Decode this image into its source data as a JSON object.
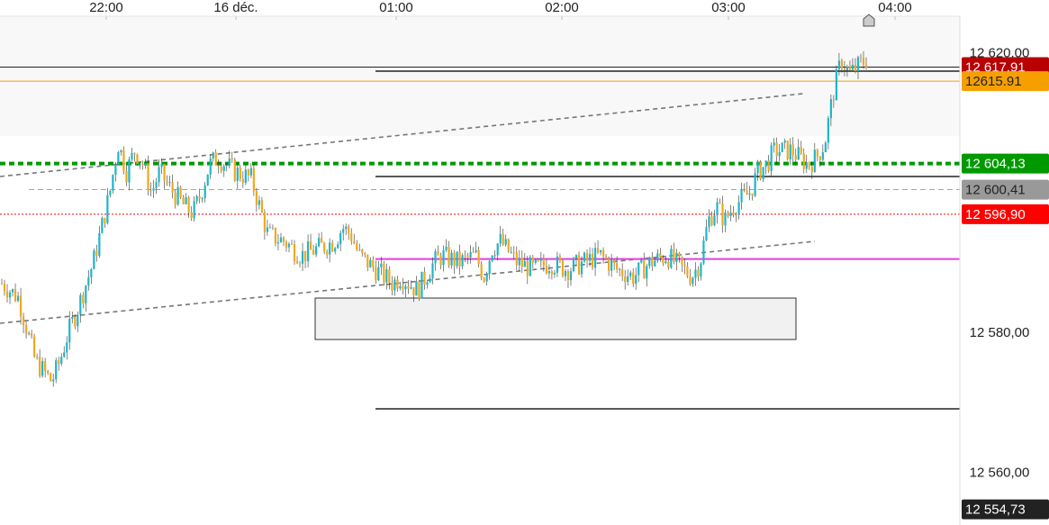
{
  "colors": {
    "up": "#1fb5c9",
    "down": "#f0a81c",
    "current_price": "#b80000",
    "orange_line": "#f5a000",
    "green_line": "#009900",
    "red_line": "#ff0000",
    "magenta_line": "#e040e0",
    "dark_line": "#222222",
    "grey_badge": "#999999",
    "box_fill": "#eeeeee"
  },
  "chart_data": {
    "type": "candlestick",
    "time_axis": {
      "ticks": [
        "22:00",
        "16 déc.",
        "01:00",
        "02:00",
        "03:00",
        "04:00"
      ]
    },
    "price_axis": {
      "ylim": [
        12552.5,
        12627.5
      ],
      "ticks": [
        {
          "value": 12620,
          "label": "12 620,00"
        },
        {
          "value": 12580,
          "label": "12 580,00"
        },
        {
          "value": 12560,
          "label": "12 560,00"
        }
      ]
    },
    "price_path": [
      [
        0,
        12587
      ],
      [
        2,
        12585
      ],
      [
        4,
        12576
      ],
      [
        6,
        12573
      ],
      [
        7,
        12576
      ],
      [
        8,
        12580
      ],
      [
        9,
        12583
      ],
      [
        11,
        12590
      ],
      [
        13,
        12600
      ],
      [
        14,
        12607
      ],
      [
        15,
        12603
      ],
      [
        16,
        12606
      ],
      [
        17,
        12604
      ],
      [
        18,
        12600
      ],
      [
        19,
        12603
      ],
      [
        20,
        12601
      ],
      [
        22,
        12598
      ],
      [
        23,
        12597
      ],
      [
        24,
        12600
      ],
      [
        25,
        12604
      ],
      [
        26,
        12605
      ],
      [
        27,
        12604
      ],
      [
        28,
        12603
      ],
      [
        30,
        12602
      ],
      [
        31,
        12598
      ],
      [
        32,
        12594
      ],
      [
        34,
        12593
      ],
      [
        35,
        12592
      ],
      [
        36,
        12591
      ],
      [
        38,
        12592
      ],
      [
        40,
        12593
      ],
      [
        41,
        12595
      ],
      [
        42,
        12594
      ],
      [
        43,
        12591
      ],
      [
        45,
        12589
      ],
      [
        47,
        12587
      ],
      [
        48,
        12588
      ],
      [
        50,
        12586
      ],
      [
        52,
        12590
      ],
      [
        53,
        12591
      ],
      [
        55,
        12590
      ],
      [
        57,
        12591
      ],
      [
        58,
        12588
      ],
      [
        59,
        12592
      ],
      [
        60,
        12593
      ],
      [
        62,
        12590
      ],
      [
        64,
        12589
      ],
      [
        66,
        12590
      ],
      [
        68,
        12589
      ],
      [
        70,
        12590
      ],
      [
        72,
        12591
      ],
      [
        74,
        12589
      ],
      [
        76,
        12588
      ],
      [
        78,
        12590
      ],
      [
        80,
        12591
      ],
      [
        82,
        12589
      ],
      [
        83,
        12588
      ],
      [
        84,
        12590
      ],
      [
        85,
        12596
      ],
      [
        86,
        12598
      ],
      [
        87,
        12596
      ],
      [
        88,
        12598
      ],
      [
        90,
        12600
      ],
      [
        91,
        12603
      ],
      [
        92,
        12604
      ],
      [
        93,
        12606
      ],
      [
        95,
        12606
      ],
      [
        96,
        12605
      ],
      [
        97,
        12604
      ],
      [
        98,
        12605
      ],
      [
        99,
        12607
      ],
      [
        100,
        12614
      ],
      [
        101,
        12619
      ],
      [
        102,
        12617
      ],
      [
        103,
        12618
      ],
      [
        104,
        12619
      ]
    ],
    "lines": [
      {
        "kind": "horizontal",
        "price": 12617.91,
        "color_key": "current_price",
        "style": "solid"
      },
      {
        "kind": "horizontal",
        "price": 12615.91,
        "color_key": "orange_line",
        "style": "solid"
      },
      {
        "kind": "horizontal",
        "price": 12604.13,
        "color_key": "green_line",
        "style": "dotted-bold"
      },
      {
        "kind": "horizontal",
        "price": 12600.41,
        "color_key": "grey_badge",
        "style": "dashed"
      },
      {
        "kind": "horizontal",
        "price": 12596.9,
        "color_key": "red_line",
        "style": "dotted"
      },
      {
        "kind": "horizontal",
        "price": 12590.5,
        "color_key": "magenta_line",
        "style": "solid"
      }
    ],
    "price_badges": [
      {
        "label": "12 617,91",
        "price": 12617.91,
        "bg_key": "current_price",
        "text_color": "#ffffff"
      },
      {
        "label": "12615.91",
        "price": 12615.91,
        "bg_key": "orange_line",
        "text_color": "#222222"
      },
      {
        "label": "12 604,13",
        "price": 12604.13,
        "bg_key": "green_line",
        "text_color": "#ffffff"
      },
      {
        "label": "12 600,41",
        "price": 12600.41,
        "bg_key": "grey_badge",
        "text_color": "#222222"
      },
      {
        "label": "12 596,90",
        "price": 12596.9,
        "bg_key": "red_line",
        "text_color": "#ffffff"
      },
      {
        "label": "12 554,73",
        "price": 12554.73,
        "bg_key": "dark_line",
        "text_color": "#ffffff"
      }
    ]
  }
}
